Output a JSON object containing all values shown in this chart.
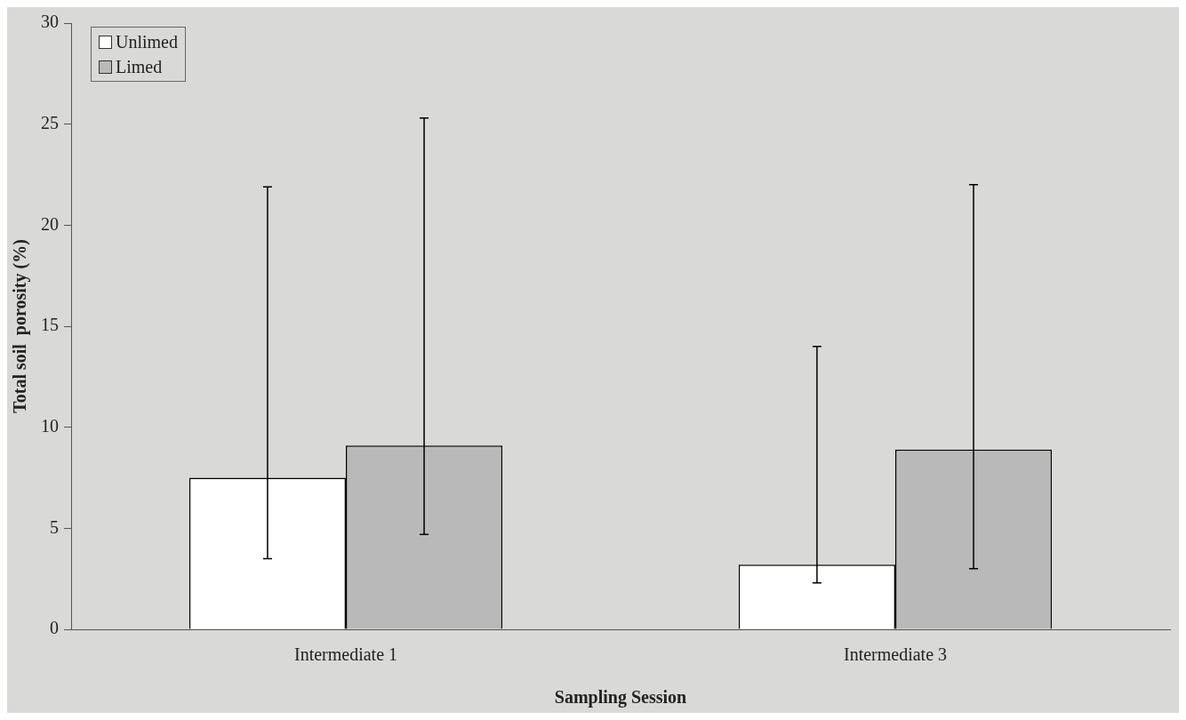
{
  "chart_data": {
    "type": "bar",
    "xlabel": "Sampling Session",
    "ylabel": "Total soil  porosity (%)",
    "categories": [
      "Intermediate 1",
      "Intermediate 3"
    ],
    "series": [
      {
        "name": "Unlimed",
        "color": "#ffffff",
        "values": [
          7.5,
          3.2
        ],
        "errors": [
          [
            3.5,
            21.9
          ],
          [
            2.3,
            14.0
          ]
        ]
      },
      {
        "name": "Limed",
        "color": "#b9b9b9",
        "values": [
          9.1,
          8.9
        ],
        "errors": [
          [
            4.7,
            25.3
          ],
          [
            3.0,
            22.0
          ]
        ]
      }
    ],
    "ylim": [
      0,
      30
    ],
    "yticks": [
      0,
      5,
      10,
      15,
      20,
      25,
      30
    ],
    "grid": false,
    "legend": "top left"
  }
}
